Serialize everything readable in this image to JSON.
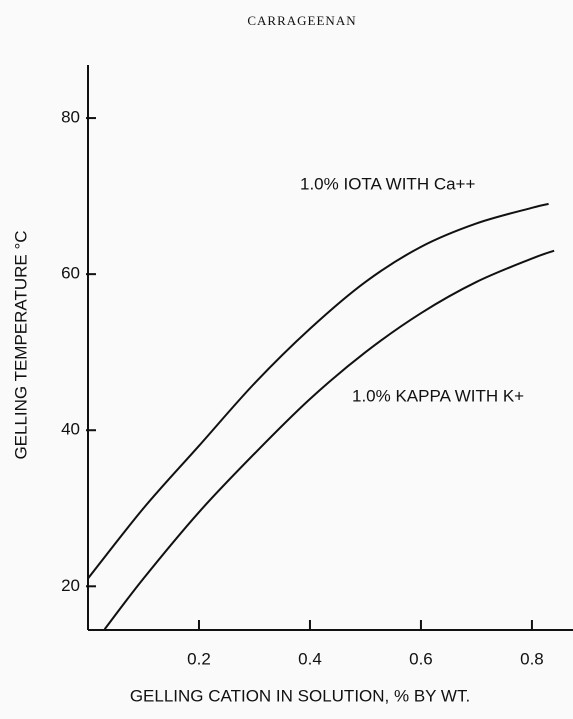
{
  "chart_data": {
    "type": "line",
    "title": "CARRAGEENAN",
    "xlabel": "GELLING CATION IN SOLUTION, % BY WT.",
    "ylabel": "GELLING TEMPERATURE °C",
    "xlim": [
      0,
      0.874
    ],
    "ylim": [
      14.4,
      86.8
    ],
    "xticks": [
      0.2,
      0.4,
      0.6,
      0.8
    ],
    "yticks": [
      20,
      40,
      60,
      80
    ],
    "series": [
      {
        "name": "1.0% IOTA WITH Ca++",
        "color": "#111111",
        "x": [
          0,
          0.1,
          0.2,
          0.3,
          0.4,
          0.5,
          0.6,
          0.7,
          0.8,
          0.83
        ],
        "values": [
          21,
          30,
          38,
          46,
          53,
          59,
          63.5,
          66.5,
          68.5,
          69
        ]
      },
      {
        "name": "1.0% KAPPA WITH K+",
        "color": "#111111",
        "x": [
          0.03,
          0.1,
          0.2,
          0.3,
          0.4,
          0.5,
          0.6,
          0.7,
          0.8,
          0.84
        ],
        "values": [
          14.5,
          21,
          29.5,
          37,
          44,
          50,
          55,
          59,
          62,
          63
        ]
      }
    ]
  }
}
